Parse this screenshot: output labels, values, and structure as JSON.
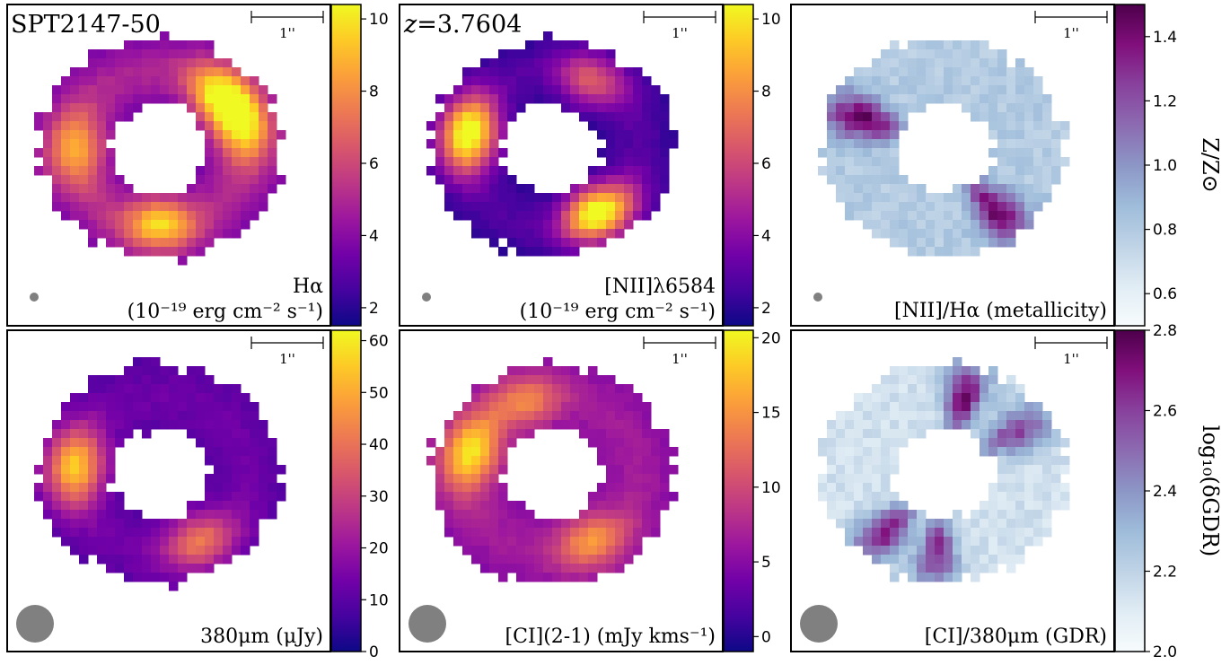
{
  "figure": {
    "source_label": "SPT2147-50",
    "redshift_label": "z=3.7604",
    "scale_bar_label": "1''"
  },
  "colors": {
    "plasma": [
      "#0d0887",
      "#46039f",
      "#7201a8",
      "#9c179e",
      "#bd3786",
      "#d8576b",
      "#ed7953",
      "#fb9f3a",
      "#fdca26",
      "#f0f921"
    ],
    "bupu": [
      "#f7fcfd",
      "#e0ecf4",
      "#bfd3e6",
      "#9ebcda",
      "#8c96c6",
      "#8c6bb1",
      "#88419d",
      "#810f7c",
      "#4d004b"
    ],
    "beam": "#808080"
  },
  "chart_data": [
    {
      "type": "heatmap",
      "row": 0,
      "col": 0,
      "label_line1": "Hα",
      "label_line2": "(10⁻¹⁹ erg cm⁻² s⁻¹)",
      "colormap": "plasma",
      "vmin": 1.5,
      "vmax": 10.4,
      "ticks": [
        2,
        4,
        6,
        8,
        10
      ],
      "beam": "small",
      "peaks": [
        {
          "theta": 40,
          "value": 9.5
        },
        {
          "theta": 15,
          "value": 8.5
        },
        {
          "theta": 180,
          "value": 8.0
        },
        {
          "theta": 270,
          "value": 9.0
        }
      ],
      "base_value": 4.5
    },
    {
      "type": "heatmap",
      "row": 0,
      "col": 1,
      "label_line1": "[NII]λ6584",
      "label_line2": "(10⁻¹⁹ erg cm⁻² s⁻¹)",
      "colormap": "plasma",
      "vmin": 1.5,
      "vmax": 10.4,
      "ticks": [
        2,
        4,
        6,
        8,
        10
      ],
      "beam": "small",
      "peaks": [
        {
          "theta": 170,
          "value": 10.2
        },
        {
          "theta": 305,
          "value": 10.2
        },
        {
          "theta": 60,
          "value": 6.0
        }
      ],
      "base_value": 2.5
    },
    {
      "type": "heatmap",
      "row": 0,
      "col": 2,
      "label_line1": "[NII]/Hα (metallicity)",
      "label_line2": "",
      "colormap": "bupu",
      "vmin": 0.5,
      "vmax": 1.5,
      "ticks": [
        0.6,
        0.8,
        1.0,
        1.2,
        1.4
      ],
      "tick_format": 1,
      "colorbar_label": "Z/Z⊙",
      "beam": "small",
      "peaks": [
        {
          "theta": 160,
          "value": 1.45
        },
        {
          "theta": 310,
          "value": 1.45
        }
      ],
      "base_value": 0.8
    },
    {
      "type": "heatmap",
      "row": 1,
      "col": 0,
      "label_line1": "380μm (μJy)",
      "label_line2": "",
      "colormap": "plasma",
      "vmin": 0,
      "vmax": 62,
      "ticks": [
        0,
        10,
        20,
        30,
        40,
        50,
        60
      ],
      "beam": "large",
      "peaks": [
        {
          "theta": 175,
          "value": 50
        },
        {
          "theta": 300,
          "value": 38
        }
      ],
      "base_value": 12
    },
    {
      "type": "heatmap",
      "row": 1,
      "col": 1,
      "label_line1": "[CI](2-1) (mJy kms⁻¹)",
      "label_line2": "",
      "colormap": "plasma",
      "vmin": -1,
      "vmax": 20.5,
      "ticks": [
        0,
        5,
        10,
        15,
        20
      ],
      "beam": "large",
      "peaks": [
        {
          "theta": 165,
          "value": 18
        },
        {
          "theta": 110,
          "value": 13
        },
        {
          "theta": 300,
          "value": 14
        }
      ],
      "base_value": 6
    },
    {
      "type": "heatmap",
      "row": 1,
      "col": 2,
      "label_line1": "[CI]/380μm (GDR)",
      "label_line2": "",
      "colormap": "bupu",
      "vmin": 2.0,
      "vmax": 2.8,
      "ticks": [
        2.0,
        2.2,
        2.4,
        2.6,
        2.8
      ],
      "tick_format": 1,
      "colorbar_label": "log₁₀(δGDR)",
      "beam": "large",
      "peaks": [
        {
          "theta": 75,
          "value": 2.75
        },
        {
          "theta": 225,
          "value": 2.7
        },
        {
          "theta": 265,
          "value": 2.65
        },
        {
          "theta": 30,
          "value": 2.6
        }
      ],
      "base_value": 2.15
    }
  ]
}
